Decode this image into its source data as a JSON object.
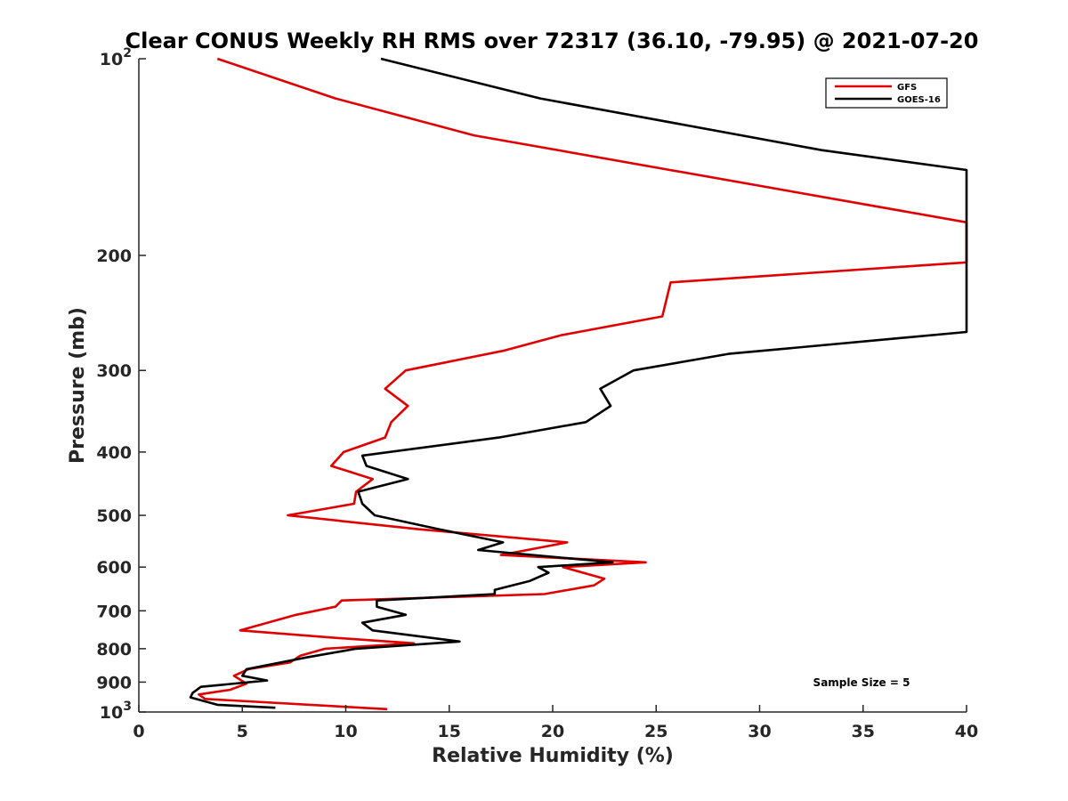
{
  "chart_data": {
    "type": "line",
    "title": "Clear CONUS Weekly RH RMS over 72317 (36.10, -79.95) @ 2021-07-20",
    "xlabel": "Relative Humidity (%)",
    "ylabel": "Pressure (mb)",
    "xlim": [
      0,
      40
    ],
    "ylim": [
      100,
      1000
    ],
    "y_scale": "log",
    "y_reversed": true,
    "grid": false,
    "legend_position": "top-right",
    "x_ticks": [
      "0",
      "5",
      "10",
      "15",
      "20",
      "25",
      "30",
      "35",
      "40"
    ],
    "y_ticks": [
      {
        "value": 100,
        "base": "10",
        "exp": "2"
      },
      {
        "value": 200,
        "label": "200"
      },
      {
        "value": 300,
        "label": "300"
      },
      {
        "value": 400,
        "label": "400"
      },
      {
        "value": 500,
        "label": "500"
      },
      {
        "value": 600,
        "label": "600"
      },
      {
        "value": 700,
        "label": "700"
      },
      {
        "value": 800,
        "label": "800"
      },
      {
        "value": 900,
        "label": "900"
      },
      {
        "value": 1000,
        "base": "10",
        "exp": "3"
      }
    ],
    "annotation": "Sample Size = 5",
    "series": [
      {
        "name": "GFS",
        "color": "#e00000",
        "points": [
          [
            3.8,
            100
          ],
          [
            9.5,
            115
          ],
          [
            16.2,
            131
          ],
          [
            40,
            178
          ],
          [
            40,
            205
          ],
          [
            25.7,
            220
          ],
          [
            25.3,
            248
          ],
          [
            20.4,
            265
          ],
          [
            17.6,
            280
          ],
          [
            12.9,
            300
          ],
          [
            11.9,
            320
          ],
          [
            13.0,
            340
          ],
          [
            12.2,
            360
          ],
          [
            11.9,
            380
          ],
          [
            9.9,
            400
          ],
          [
            9.3,
            420
          ],
          [
            11.3,
            440
          ],
          [
            10.5,
            460
          ],
          [
            10.4,
            480
          ],
          [
            7.2,
            500
          ],
          [
            13.5,
            525
          ],
          [
            20.7,
            550
          ],
          [
            17.5,
            575
          ],
          [
            24.5,
            590
          ],
          [
            20.5,
            600
          ],
          [
            22.5,
            625
          ],
          [
            22.0,
            640
          ],
          [
            19.6,
            660
          ],
          [
            9.8,
            675
          ],
          [
            9.5,
            690
          ],
          [
            7.6,
            710
          ],
          [
            4.9,
            750
          ],
          [
            9.5,
            770
          ],
          [
            13.3,
            785
          ],
          [
            9.0,
            800
          ],
          [
            7.8,
            820
          ],
          [
            7.3,
            840
          ],
          [
            5.3,
            860
          ],
          [
            4.6,
            880
          ],
          [
            5.2,
            905
          ],
          [
            4.4,
            925
          ],
          [
            2.9,
            940
          ],
          [
            3.2,
            955
          ],
          [
            12.0,
            990
          ]
        ]
      },
      {
        "name": "GOES-16",
        "color": "#000000",
        "points": [
          [
            11.7,
            100
          ],
          [
            19.4,
            115
          ],
          [
            33.0,
            138
          ],
          [
            40,
            148
          ],
          [
            40,
            262
          ],
          [
            28.5,
            283
          ],
          [
            23.9,
            300
          ],
          [
            22.3,
            320
          ],
          [
            22.8,
            340
          ],
          [
            21.6,
            360
          ],
          [
            17.4,
            380
          ],
          [
            10.8,
            405
          ],
          [
            11.0,
            420
          ],
          [
            13.0,
            440
          ],
          [
            10.6,
            460
          ],
          [
            10.8,
            480
          ],
          [
            11.4,
            500
          ],
          [
            14.5,
            525
          ],
          [
            17.6,
            550
          ],
          [
            16.4,
            565
          ],
          [
            22.9,
            590
          ],
          [
            19.3,
            600
          ],
          [
            19.8,
            612
          ],
          [
            18.9,
            630
          ],
          [
            17.2,
            650
          ],
          [
            17.2,
            660
          ],
          [
            11.5,
            675
          ],
          [
            11.5,
            690
          ],
          [
            12.9,
            710
          ],
          [
            10.8,
            730
          ],
          [
            11.3,
            750
          ],
          [
            15.5,
            780
          ],
          [
            10.5,
            800
          ],
          [
            8.1,
            825
          ],
          [
            5.2,
            860
          ],
          [
            5.0,
            880
          ],
          [
            6.2,
            895
          ],
          [
            3.0,
            915
          ],
          [
            2.6,
            935
          ],
          [
            2.5,
            950
          ],
          [
            3.8,
            975
          ],
          [
            6.6,
            985
          ]
        ]
      }
    ]
  }
}
